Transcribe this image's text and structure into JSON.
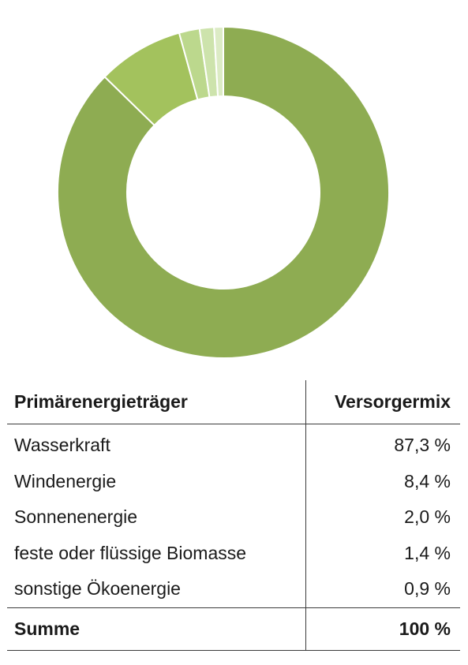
{
  "chart_data": {
    "type": "pie",
    "style": "donut",
    "title": "",
    "categories": [
      "Wasserkraft",
      "Windenergie",
      "Sonnenenergie",
      "feste oder flüssige Biomasse",
      "sonstige Ökoenergie"
    ],
    "values": [
      87.3,
      8.4,
      2.0,
      1.4,
      0.9
    ],
    "colors": [
      "#8eac52",
      "#a3c25d",
      "#bcd88d",
      "#cde3ac",
      "#dcebc5"
    ],
    "legend": "none"
  },
  "table": {
    "headers": [
      "Primärenergieträger",
      "Versorgermix"
    ],
    "rows": [
      [
        "Wasserkraft",
        "87,3 %"
      ],
      [
        "Windenergie",
        "8,4 %"
      ],
      [
        "Sonnenenergie",
        "2,0 %"
      ],
      [
        "feste oder flüssige Biomasse",
        "1,4 %"
      ],
      [
        "sonstige Ökoenergie",
        "0,9 %"
      ]
    ],
    "total": [
      "Summe",
      "100 %"
    ]
  }
}
